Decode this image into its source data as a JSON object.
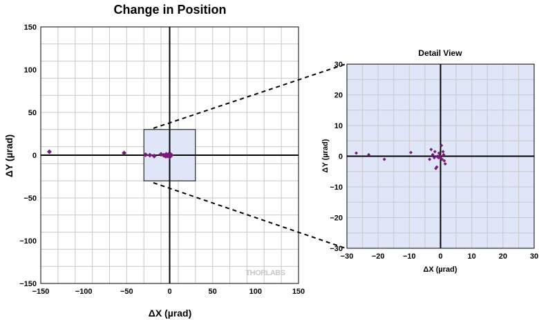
{
  "chart_data": [
    {
      "type": "scatter",
      "title": "Change in Position",
      "xlabel": "ΔX (µrad)",
      "ylabel": "ΔY (µrad)",
      "xlim": [
        -150,
        150
      ],
      "ylim": [
        -150,
        150
      ],
      "xticks": [
        -150,
        -100,
        -50,
        0,
        50,
        100,
        150
      ],
      "yticks": [
        -150,
        -100,
        -50,
        0,
        50,
        100,
        150
      ],
      "grid": true,
      "watermark": "THORLABS",
      "detail_region": {
        "x": [
          -30,
          30
        ],
        "y": [
          -30,
          30
        ]
      },
      "x": [
        -140,
        -53,
        -28,
        -23,
        -18,
        -10,
        -7,
        -5,
        -4,
        -3,
        -2,
        -1,
        -1,
        0,
        0,
        1,
        1,
        2
      ],
      "y": [
        4,
        2.5,
        0.5,
        0,
        -1,
        1,
        0,
        -1,
        1,
        -1,
        0,
        0,
        1,
        0,
        -2,
        -1,
        1,
        0
      ],
      "color": "#7a1a7a"
    },
    {
      "type": "scatter",
      "title": "Detail View",
      "xlabel": "ΔX (µrad)",
      "ylabel": "ΔY (µrad)",
      "xlim": [
        -30,
        30
      ],
      "ylim": [
        -30,
        30
      ],
      "xticks": [
        -30,
        -20,
        -10,
        0,
        10,
        20,
        30
      ],
      "yticks": [
        -30,
        -20,
        -10,
        0,
        10,
        20,
        30
      ],
      "grid": true,
      "background": "#dfe6f7",
      "x": [
        -27,
        -23,
        -18,
        -9.5,
        -3.5,
        -3,
        -2.5,
        -2,
        -1.8,
        -1.5,
        -1.2,
        -1,
        -1,
        -0.6,
        -0.5,
        -0.3,
        0,
        0.3,
        0.5,
        0.8,
        1,
        1.2,
        1.5
      ],
      "y": [
        1,
        0.5,
        -1,
        1.2,
        -1,
        2.2,
        0.5,
        -0.5,
        1.5,
        -4,
        -3.5,
        0,
        -0.2,
        -0.5,
        1,
        0.2,
        -0.5,
        3.5,
        -1,
        1.5,
        0.5,
        -1.5,
        -2.5
      ],
      "color": "#7a1a7a"
    }
  ]
}
